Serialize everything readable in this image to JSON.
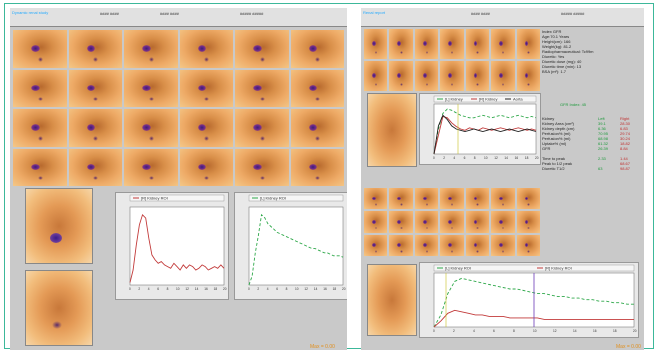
{
  "left_panel": {
    "frames": 24,
    "label_kidney_left": "",
    "label_kidney_right": "",
    "max_label": "Max = 0.00",
    "chart_left_title": "[R] Kidney ROI",
    "chart_right_title": "[L] Kidney ROI"
  },
  "right_panel": {
    "hdr_title": "",
    "info_lines": [
      "Index GFR",
      "Age:70.1 Years",
      "Height(cm): 166",
      "Weight(kg): 81.2",
      "Radiopharmaceutical: Tc99m",
      "Diuretic: Yes",
      "Diuretic dose (mg): 40",
      "Diuretic time (min): 13",
      "BSA (m²): 1.7"
    ],
    "gfr_label": "GFR Index: 45",
    "table_headers": [
      "Kidney",
      "Left",
      "Right"
    ],
    "table_rows": [
      [
        "Kidney Area (cm²)",
        "39.1",
        "28.30"
      ],
      [
        "Kidney depth (cm)",
        "6.36",
        "6.83"
      ],
      [
        "Perfusion% (ml)",
        "70.95",
        "29.74"
      ],
      [
        "Perfusion% (ml)",
        "68.98",
        "30.24"
      ],
      [
        "Uptake% (ml)",
        "61.32",
        "18.82"
      ],
      [
        "GFR",
        "26.39",
        "8.84"
      ]
    ],
    "time_rows": [
      [
        "Time to peak",
        "2.33",
        "1.44"
      ],
      [
        "Peak to 1/2 peak",
        "",
        "68.67"
      ],
      [
        "Diuretic T1/2",
        "63",
        "98.87"
      ]
    ],
    "chart_top_legend": [
      "[L] Kidney",
      "[R] Kidney",
      "Aorta"
    ],
    "chart_bottom_legend": [
      "[L] Kidney ROI",
      "[R] Kidney ROI"
    ],
    "max_label": "Max = 0.00"
  },
  "colors": {
    "left": "#2ea84a",
    "right": "#c23a3a",
    "aorta": "#222",
    "marker": "#6a3ab8",
    "frame": "#3cb89a"
  },
  "chart_data": [
    {
      "type": "line",
      "title": "[R] Kidney ROI",
      "series": [
        {
          "name": "[R] Kidney ROI",
          "values": [
            1.5,
            9,
            24,
            36,
            42,
            40,
            28,
            18,
            15,
            13,
            14,
            12,
            11,
            10,
            13,
            11,
            9,
            12,
            10,
            12,
            11,
            9,
            10,
            12,
            11,
            9,
            10,
            11,
            10,
            12,
            10
          ]
        }
      ]
    },
    {
      "type": "line",
      "title": "[L] Kidney ROI",
      "series": [
        {
          "name": "[L] Kidney ROI",
          "values": [
            0,
            6,
            22,
            34,
            48,
            46,
            42,
            40,
            38,
            36,
            35,
            34,
            33,
            32,
            31,
            30,
            29,
            28,
            27,
            26,
            25,
            25,
            24,
            23,
            22,
            22,
            21,
            20,
            20,
            20,
            19
          ]
        }
      ]
    },
    {
      "type": "line",
      "series": [
        {
          "name": "[L] Kidney",
          "values": [
            0,
            40,
            65,
            72,
            70,
            66,
            62,
            60,
            58,
            58,
            60,
            62,
            60,
            58,
            60,
            62,
            60,
            58,
            60,
            62,
            60,
            58,
            60,
            58
          ]
        },
        {
          "name": "[R] Kidney",
          "values": [
            0,
            30,
            60,
            58,
            50,
            44,
            40,
            38,
            42,
            40,
            38,
            42,
            40,
            38,
            40,
            42,
            40,
            38,
            40,
            42,
            40,
            38,
            40,
            38
          ]
        },
        {
          "name": "Aorta",
          "values": [
            0,
            45,
            62,
            55,
            45,
            40,
            38,
            36,
            38,
            40,
            38,
            36,
            38,
            40,
            38,
            36,
            38,
            40,
            38,
            36,
            38,
            40,
            38,
            36
          ]
        }
      ]
    },
    {
      "type": "line",
      "series": [
        {
          "name": "[L] Kidney ROI",
          "values": [
            0,
            8,
            22,
            30,
            32,
            31,
            30,
            29,
            28,
            27,
            26,
            25,
            25,
            24,
            23,
            22,
            22,
            21,
            20,
            20,
            19,
            19,
            18,
            18,
            17,
            17,
            16,
            16,
            15,
            15
          ]
        },
        {
          "name": "[R] Kidney ROI",
          "values": [
            0,
            4,
            9,
            11,
            10,
            9,
            8,
            8,
            7,
            7,
            7,
            6,
            6,
            6,
            6,
            6,
            5,
            5,
            5,
            5,
            5,
            5,
            5,
            5,
            5,
            5,
            5,
            5,
            5,
            5
          ]
        }
      ]
    }
  ]
}
